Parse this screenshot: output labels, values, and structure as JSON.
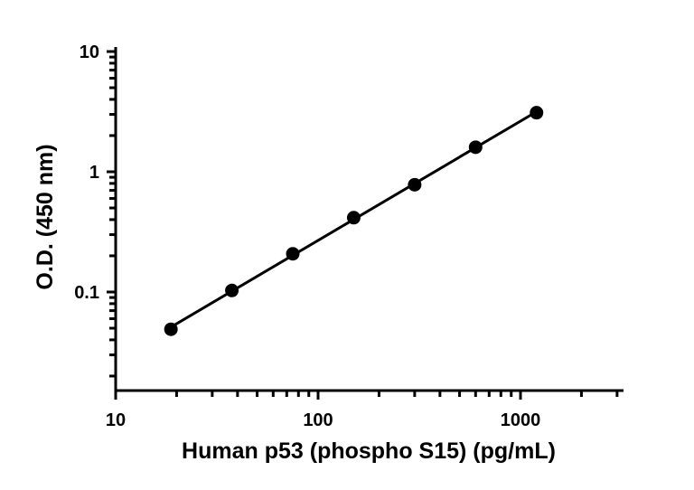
{
  "chart_data": {
    "type": "scatter",
    "title": "",
    "xlabel": "Human p53 (phospho S15) (pg/mL)",
    "ylabel": "O.D. (450 nm)",
    "xscale": "log",
    "yscale": "log",
    "xlim": [
      10,
      3200
    ],
    "ylim": [
      0.012,
      10
    ],
    "x_ticks": [
      10,
      100,
      1000
    ],
    "x_tick_labels": [
      "10",
      "100",
      "1000"
    ],
    "y_ticks": [
      0.1,
      1,
      10
    ],
    "y_tick_labels": [
      "0.1",
      "1",
      "10"
    ],
    "grid": false,
    "legend": "none",
    "series": [
      {
        "x": [
          18.75,
          37.5,
          75,
          150,
          300,
          600,
          1200
        ],
        "y": [
          0.049,
          0.103,
          0.208,
          0.415,
          0.78,
          1.6,
          3.1
        ],
        "marker": "circle",
        "fit_line": "linear in log-log space"
      }
    ],
    "colors": {
      "marker": "#000000",
      "line": "#000000",
      "axis": "#000000"
    }
  }
}
